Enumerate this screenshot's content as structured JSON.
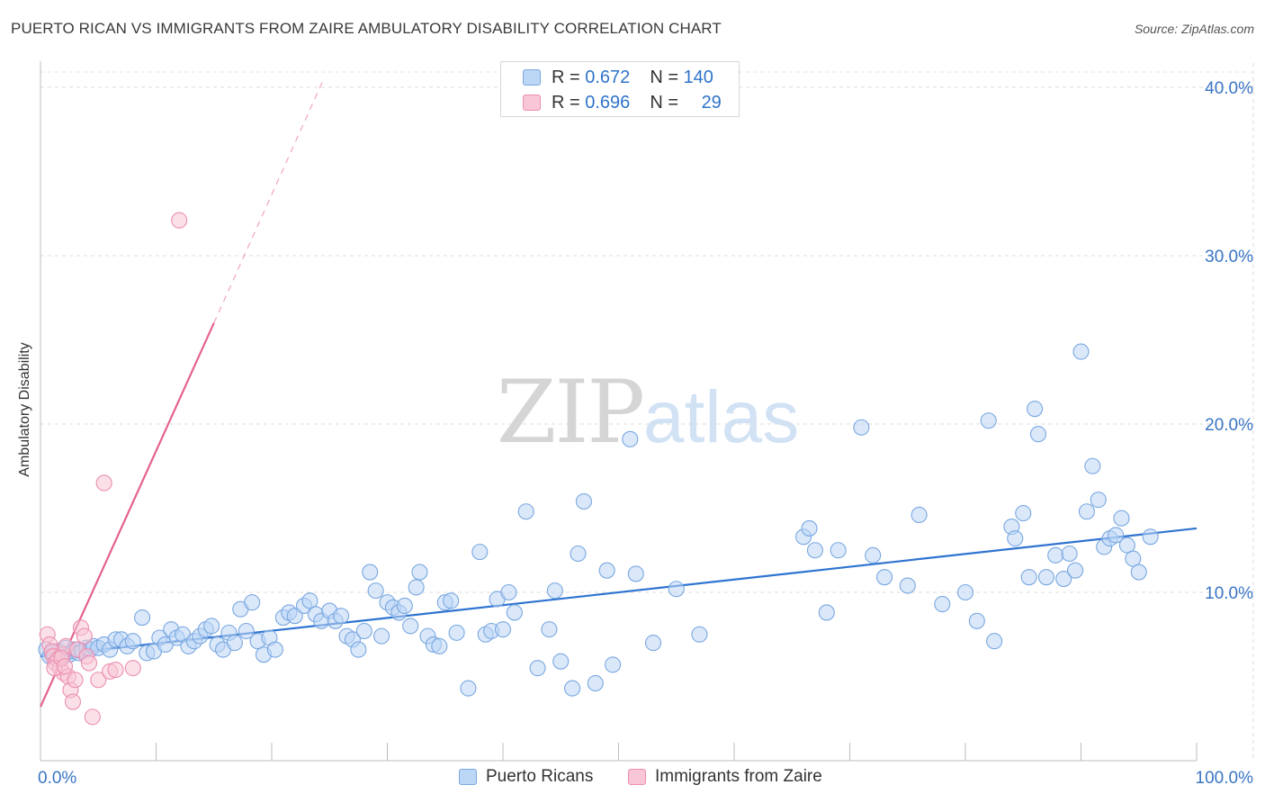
{
  "title": "PUERTO RICAN VS IMMIGRANTS FROM ZAIRE AMBULATORY DISABILITY CORRELATION CHART",
  "source": "Source: ZipAtlas.com",
  "watermark": {
    "zip": "ZIP",
    "atlas": "atlas"
  },
  "stats": [
    {
      "r_label": "R =",
      "r_value": "0.672",
      "n_label": "N =",
      "n_value": "140",
      "color": "#7aa8e0"
    },
    {
      "r_label": "R =",
      "r_value": "0.696",
      "n_label": "N =",
      "n_value": "29",
      "color": "#ec8fb0"
    }
  ],
  "chart_data": {
    "type": "scatter",
    "ylabel": "Ambulatory Disability",
    "xlim": [
      0,
      100
    ],
    "ylim": [
      0,
      40
    ],
    "y_ticks": [
      10,
      20,
      30,
      40
    ],
    "y_tick_labels": [
      "10.0%",
      "20.0%",
      "30.0%",
      "40.0%"
    ],
    "x_tick_labels": [
      "0.0%",
      "100.0%"
    ],
    "grid": true,
    "legend_position": "bottom-center",
    "series": [
      {
        "name": "Puerto Ricans",
        "color": "#7aa8e0",
        "fill": "#bcd6f5",
        "trend": {
          "x0": 0,
          "y0": 6.2,
          "x1": 100,
          "y1": 13.8
        },
        "points": [
          [
            0.5,
            6.6
          ],
          [
            0.8,
            6.2
          ],
          [
            1,
            6.4
          ],
          [
            1.2,
            6.3
          ],
          [
            1.5,
            6.5
          ],
          [
            1.8,
            6.4
          ],
          [
            2,
            6.2
          ],
          [
            2.2,
            6.7
          ],
          [
            2.5,
            6.3
          ],
          [
            2.8,
            6.5
          ],
          [
            3,
            6.6
          ],
          [
            3.3,
            6.4
          ],
          [
            3.6,
            6.5
          ],
          [
            4,
            6.7
          ],
          [
            4.3,
            6.6
          ],
          [
            4.6,
            6.8
          ],
          [
            5,
            6.7
          ],
          [
            5.5,
            6.9
          ],
          [
            6,
            6.6
          ],
          [
            6.5,
            7.2
          ],
          [
            7,
            7.2
          ],
          [
            7.5,
            6.8
          ],
          [
            8,
            7.1
          ],
          [
            8.8,
            8.5
          ],
          [
            9.2,
            6.4
          ],
          [
            9.8,
            6.5
          ],
          [
            10.3,
            7.3
          ],
          [
            10.8,
            6.9
          ],
          [
            11.3,
            7.8
          ],
          [
            11.8,
            7.3
          ],
          [
            12.3,
            7.5
          ],
          [
            12.8,
            6.8
          ],
          [
            13.3,
            7.1
          ],
          [
            13.8,
            7.4
          ],
          [
            14.3,
            7.8
          ],
          [
            14.8,
            8.0
          ],
          [
            15.3,
            6.9
          ],
          [
            15.8,
            6.6
          ],
          [
            16.3,
            7.6
          ],
          [
            16.8,
            7.0
          ],
          [
            17.3,
            9.0
          ],
          [
            17.8,
            7.7
          ],
          [
            18.3,
            9.4
          ],
          [
            18.8,
            7.1
          ],
          [
            19.3,
            6.3
          ],
          [
            19.8,
            7.3
          ],
          [
            20.3,
            6.6
          ],
          [
            21,
            8.5
          ],
          [
            21.5,
            8.8
          ],
          [
            22,
            8.6
          ],
          [
            22.8,
            9.2
          ],
          [
            23.3,
            9.5
          ],
          [
            23.8,
            8.7
          ],
          [
            24.3,
            8.3
          ],
          [
            25,
            8.9
          ],
          [
            25.5,
            8.3
          ],
          [
            26,
            8.6
          ],
          [
            26.5,
            7.4
          ],
          [
            27,
            7.2
          ],
          [
            27.5,
            6.6
          ],
          [
            28,
            7.7
          ],
          [
            28.5,
            11.2
          ],
          [
            29,
            10.1
          ],
          [
            29.5,
            7.4
          ],
          [
            30,
            9.4
          ],
          [
            30.5,
            9.1
          ],
          [
            31,
            8.8
          ],
          [
            31.5,
            9.2
          ],
          [
            32,
            8.0
          ],
          [
            32.5,
            10.3
          ],
          [
            32.8,
            11.2
          ],
          [
            33.5,
            7.4
          ],
          [
            34,
            6.9
          ],
          [
            34.5,
            6.8
          ],
          [
            35,
            9.4
          ],
          [
            35.5,
            9.5
          ],
          [
            36,
            7.6
          ],
          [
            37,
            4.3
          ],
          [
            38,
            12.4
          ],
          [
            38.5,
            7.5
          ],
          [
            39,
            7.7
          ],
          [
            39.5,
            9.6
          ],
          [
            40,
            7.8
          ],
          [
            40.5,
            10.0
          ],
          [
            41,
            8.8
          ],
          [
            42,
            14.8
          ],
          [
            43,
            5.5
          ],
          [
            44,
            7.8
          ],
          [
            44.5,
            10.1
          ],
          [
            45,
            5.9
          ],
          [
            46,
            4.3
          ],
          [
            46.5,
            12.3
          ],
          [
            47,
            15.4
          ],
          [
            48,
            4.6
          ],
          [
            49,
            11.3
          ],
          [
            49.5,
            5.7
          ],
          [
            51,
            19.1
          ],
          [
            51.5,
            11.1
          ],
          [
            53,
            7.0
          ],
          [
            55,
            10.2
          ],
          [
            57,
            7.5
          ],
          [
            66,
            13.3
          ],
          [
            66.5,
            13.8
          ],
          [
            67,
            12.5
          ],
          [
            68,
            8.8
          ],
          [
            69,
            12.5
          ],
          [
            71,
            19.8
          ],
          [
            72,
            12.2
          ],
          [
            73,
            10.9
          ],
          [
            75,
            10.4
          ],
          [
            76,
            14.6
          ],
          [
            78,
            9.3
          ],
          [
            80,
            10.0
          ],
          [
            81,
            8.3
          ],
          [
            82,
            20.2
          ],
          [
            82.5,
            7.1
          ],
          [
            84,
            13.9
          ],
          [
            84.3,
            13.2
          ],
          [
            85,
            14.7
          ],
          [
            85.5,
            10.9
          ],
          [
            86,
            20.9
          ],
          [
            86.3,
            19.4
          ],
          [
            87,
            10.9
          ],
          [
            87.8,
            12.2
          ],
          [
            88.5,
            10.8
          ],
          [
            89,
            12.3
          ],
          [
            89.5,
            11.3
          ],
          [
            90,
            24.3
          ],
          [
            90.5,
            14.8
          ],
          [
            91,
            17.5
          ],
          [
            91.5,
            15.5
          ],
          [
            92,
            12.7
          ],
          [
            92.5,
            13.2
          ],
          [
            93,
            13.4
          ],
          [
            93.5,
            14.4
          ],
          [
            94,
            12.8
          ],
          [
            94.5,
            12.0
          ],
          [
            95,
            11.2
          ],
          [
            96,
            13.3
          ]
        ]
      },
      {
        "name": "Immigrants from Zaire",
        "color": "#ec8fb0",
        "fill": "#f8c6d6",
        "trend_solid": {
          "x0": 0,
          "y0": 3.2,
          "x1": 15,
          "y1": 26.0
        },
        "trend_dashed": {
          "x0": 15,
          "y0": 26.0,
          "x1": 24.5,
          "y1": 40.5
        },
        "points": [
          [
            0.6,
            7.5
          ],
          [
            0.8,
            6.9
          ],
          [
            1,
            6.5
          ],
          [
            1.1,
            6.2
          ],
          [
            1.3,
            5.8
          ],
          [
            1.5,
            6.0
          ],
          [
            1.7,
            5.5
          ],
          [
            1.9,
            6.3
          ],
          [
            2,
            5.2
          ],
          [
            2.2,
            6.8
          ],
          [
            2.4,
            5.0
          ],
          [
            2.6,
            4.2
          ],
          [
            2.8,
            3.5
          ],
          [
            3,
            4.8
          ],
          [
            3.2,
            6.6
          ],
          [
            3.5,
            7.9
          ],
          [
            3.8,
            7.4
          ],
          [
            4,
            6.2
          ],
          [
            4.2,
            5.8
          ],
          [
            4.5,
            2.6
          ],
          [
            5,
            4.8
          ],
          [
            5.5,
            16.5
          ],
          [
            6,
            5.3
          ],
          [
            6.5,
            5.4
          ],
          [
            8,
            5.5
          ],
          [
            12,
            32.1
          ],
          [
            1.2,
            5.5
          ],
          [
            1.8,
            6.1
          ],
          [
            2.1,
            5.6
          ]
        ]
      }
    ]
  },
  "legend": [
    {
      "label": "Puerto Ricans",
      "color": "#7aa8e0"
    },
    {
      "label": "Immigrants from Zaire",
      "color": "#ec8fb0"
    }
  ]
}
